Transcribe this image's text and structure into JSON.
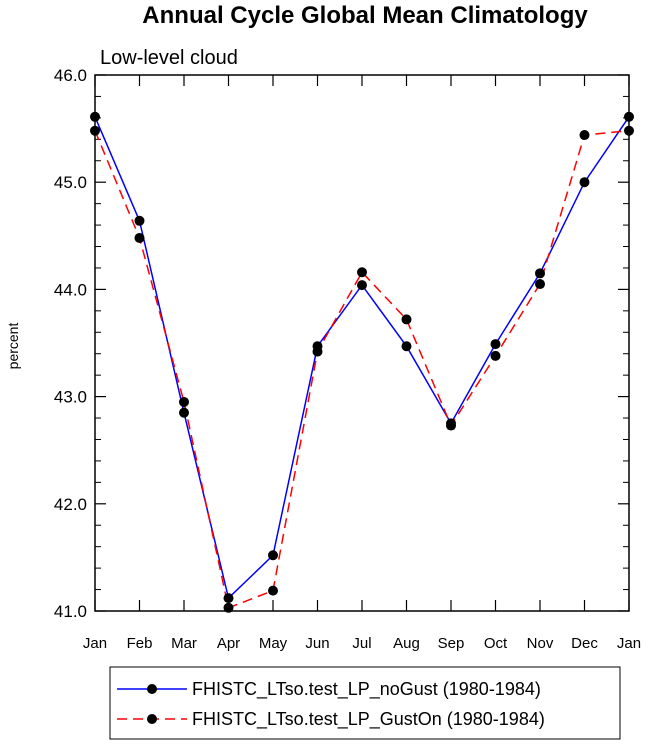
{
  "chart_data": {
    "type": "line",
    "title": "Annual Cycle Global Mean Climatology",
    "subtitle": "Low-level cloud",
    "xlabel": "",
    "ylabel": "percent",
    "categories": [
      "Jan",
      "Feb",
      "Mar",
      "Apr",
      "May",
      "Jun",
      "Jul",
      "Aug",
      "Sep",
      "Oct",
      "Nov",
      "Dec",
      "Jan"
    ],
    "ylim": [
      41.0,
      46.0
    ],
    "yticks": [
      "41.0",
      "42.0",
      "43.0",
      "44.0",
      "45.0",
      "46.0"
    ],
    "grid": false,
    "legend_position": "bottom",
    "series": [
      {
        "name": "FHISTC_LTso.test_LP_noGust (1980-1984)",
        "color": "#0000ff",
        "dash": "solid",
        "values": [
          45.61,
          44.64,
          42.85,
          41.12,
          41.52,
          43.47,
          44.04,
          43.47,
          42.75,
          43.49,
          44.15,
          45.0,
          45.61
        ]
      },
      {
        "name": "FHISTC_LTso.test_LP_GustOn (1980-1984)",
        "color": "#ff0000",
        "dash": "dashed",
        "values": [
          45.48,
          44.48,
          42.95,
          41.03,
          41.19,
          43.42,
          44.16,
          43.72,
          42.73,
          43.38,
          44.05,
          45.44,
          45.48
        ]
      }
    ]
  }
}
